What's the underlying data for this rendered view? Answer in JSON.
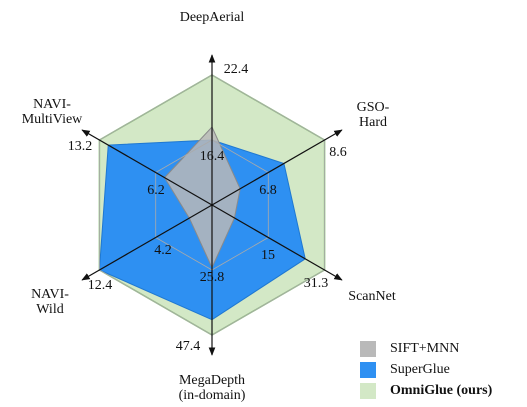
{
  "chart_data": {
    "type": "radar",
    "axes": [
      {
        "name": [
          "DeepAerial"
        ],
        "lim": [
          10.4,
          22.4
        ],
        "ticks": [
          16.4,
          22.4
        ]
      },
      {
        "name": [
          "GSO-",
          "Hard"
        ],
        "lim": [
          5.0,
          8.6
        ],
        "ticks": [
          6.8,
          8.6
        ]
      },
      {
        "name": [
          "ScanNet"
        ],
        "lim": [
          -1.3,
          31.3
        ],
        "ticks": [
          15.0,
          31.3
        ]
      },
      {
        "name": [
          "MegaDepth",
          "(in-domain)"
        ],
        "lim": [
          4.2,
          47.4
        ],
        "ticks": [
          25.8,
          47.4
        ]
      },
      {
        "name": [
          "NAVI-",
          "Wild"
        ],
        "lim": [
          -4.0,
          12.4
        ],
        "ticks": [
          4.2,
          12.4
        ]
      },
      {
        "name": [
          "NAVI-",
          "MultiView"
        ],
        "lim": [
          -0.8,
          13.2
        ],
        "ticks": [
          6.2,
          13.2
        ]
      }
    ],
    "series": [
      {
        "name": "SIFT+MNN",
        "color": "#b9b9b9",
        "values": [
          17.6,
          5.9,
          5.2,
          25.0,
          -0.7,
          5.1
        ]
      },
      {
        "name": "SuperGlue",
        "color": "#2e90f2",
        "values": [
          16.4,
          7.3,
          25.7,
          42.3,
          12.4,
          12.1
        ]
      },
      {
        "name": "OmniGlue (ours)",
        "color": "#d3e8c6",
        "values": [
          22.4,
          8.6,
          31.3,
          47.4,
          12.4,
          13.2
        ]
      }
    ],
    "grid": true
  }
}
